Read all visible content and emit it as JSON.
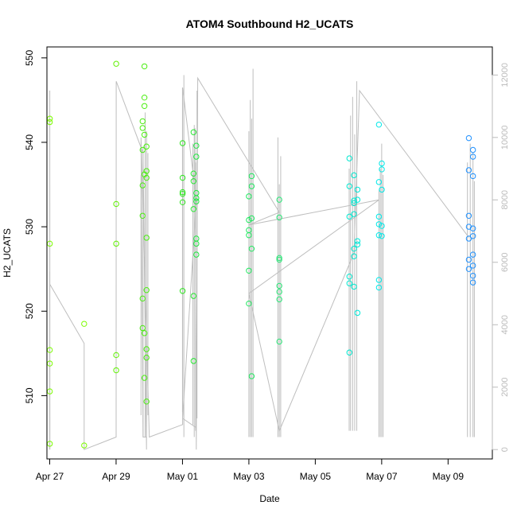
{
  "chart_data": {
    "type": "scatter",
    "title": "ATOM4 Southbound H2_UCATS",
    "xlabel": "Date",
    "ylabel": "H2_UCATS",
    "xlim": [
      "2016-04-26 22:00",
      "2016-05-10 08:00"
    ],
    "ylim": [
      502.5,
      551.3
    ],
    "y2lim": [
      -300,
      12900
    ],
    "x_tick_labels": [
      "Apr 27",
      "Apr 29",
      "May 01",
      "May 03",
      "May 05",
      "May 07",
      "May 09"
    ],
    "x_tick_values": [
      "2016-04-27",
      "2016-04-29",
      "2016-05-01",
      "2016-05-03",
      "2016-05-05",
      "2016-05-07",
      "2016-05-09"
    ],
    "y_tick_labels": [
      "510",
      "520",
      "530",
      "540",
      "550"
    ],
    "y2_tick_labels": [
      "0",
      "2000",
      "4000",
      "6000",
      "8000",
      "10000",
      "12000"
    ],
    "grid": false,
    "colors": {
      "flight_track": "#bebebe",
      "axis": "#000000",
      "right_axis": "#bbbbbb"
    },
    "points": [
      {
        "t": "2016-04-27 00:05",
        "y": 542.8,
        "color": "#7cfc00"
      },
      {
        "t": "2016-04-27 00:05",
        "y": 542.4,
        "color": "#7cfc00"
      },
      {
        "t": "2016-04-27 00:05",
        "y": 528.0,
        "color": "#7cfc00"
      },
      {
        "t": "2016-04-27 00:05",
        "y": 515.4,
        "color": "#7cfc00"
      },
      {
        "t": "2016-04-27 00:05",
        "y": 513.8,
        "color": "#7cfc00"
      },
      {
        "t": "2016-04-27 00:05",
        "y": 510.5,
        "color": "#7cfc00"
      },
      {
        "t": "2016-04-27 00:05",
        "y": 504.3,
        "color": "#7cfc00"
      },
      {
        "t": "2016-04-28 00:55",
        "y": 518.5,
        "color": "#7cfc00"
      },
      {
        "t": "2016-04-28 00:55",
        "y": 504.1,
        "color": "#7cfc00"
      },
      {
        "t": "2016-04-29 00:05",
        "y": 549.3,
        "color": "#5ff200"
      },
      {
        "t": "2016-04-29 00:05",
        "y": 532.7,
        "color": "#5ff200"
      },
      {
        "t": "2016-04-29 00:05",
        "y": 528.0,
        "color": "#5ff200"
      },
      {
        "t": "2016-04-29 00:05",
        "y": 514.8,
        "color": "#5ff200"
      },
      {
        "t": "2016-04-29 00:05",
        "y": 513.0,
        "color": "#5ff200"
      },
      {
        "t": "2016-04-29 19:10",
        "y": 542.5,
        "color": "#4aee10"
      },
      {
        "t": "2016-04-29 19:10",
        "y": 541.7,
        "color": "#4aee10"
      },
      {
        "t": "2016-04-29 19:10",
        "y": 539.1,
        "color": "#4aee10"
      },
      {
        "t": "2016-04-29 19:10",
        "y": 534.9,
        "color": "#4aee10"
      },
      {
        "t": "2016-04-29 19:10",
        "y": 531.3,
        "color": "#4aee10"
      },
      {
        "t": "2016-04-29 19:10",
        "y": 521.5,
        "color": "#4aee10"
      },
      {
        "t": "2016-04-29 19:10",
        "y": 518.0,
        "color": "#4aee10"
      },
      {
        "t": "2016-04-29 20:30",
        "y": 549.0,
        "color": "#4aee10"
      },
      {
        "t": "2016-04-29 20:30",
        "y": 545.3,
        "color": "#4aee10"
      },
      {
        "t": "2016-04-29 20:30",
        "y": 544.3,
        "color": "#4aee10"
      },
      {
        "t": "2016-04-29 20:30",
        "y": 540.9,
        "color": "#4aee10"
      },
      {
        "t": "2016-04-29 20:30",
        "y": 536.2,
        "color": "#4aee10"
      },
      {
        "t": "2016-04-29 20:30",
        "y": 517.4,
        "color": "#4aee10"
      },
      {
        "t": "2016-04-29 20:30",
        "y": 512.1,
        "color": "#4aee10"
      },
      {
        "t": "2016-04-29 22:00",
        "y": 539.5,
        "color": "#4aee10"
      },
      {
        "t": "2016-04-29 22:00",
        "y": 536.6,
        "color": "#4aee10"
      },
      {
        "t": "2016-04-29 22:00",
        "y": 535.8,
        "color": "#4aee10"
      },
      {
        "t": "2016-04-29 22:00",
        "y": 528.7,
        "color": "#4aee10"
      },
      {
        "t": "2016-04-29 22:00",
        "y": 522.5,
        "color": "#4aee10"
      },
      {
        "t": "2016-04-29 22:00",
        "y": 515.5,
        "color": "#4aee10"
      },
      {
        "t": "2016-04-29 22:00",
        "y": 514.5,
        "color": "#4aee10"
      },
      {
        "t": "2016-04-29 22:00",
        "y": 509.3,
        "color": "#4aee10"
      },
      {
        "t": "2016-05-01 00:05",
        "y": 539.9,
        "color": "#2ee820"
      },
      {
        "t": "2016-05-01 00:05",
        "y": 535.8,
        "color": "#2ee820"
      },
      {
        "t": "2016-05-01 00:05",
        "y": 534.1,
        "color": "#2ee820"
      },
      {
        "t": "2016-05-01 00:05",
        "y": 533.9,
        "color": "#2ee820"
      },
      {
        "t": "2016-05-01 00:05",
        "y": 532.9,
        "color": "#2ee820"
      },
      {
        "t": "2016-05-01 00:05",
        "y": 522.4,
        "color": "#2ee820"
      },
      {
        "t": "2016-05-01 08:00",
        "y": 541.2,
        "color": "#25e830"
      },
      {
        "t": "2016-05-01 08:00",
        "y": 536.3,
        "color": "#25e830"
      },
      {
        "t": "2016-05-01 08:00",
        "y": 535.4,
        "color": "#25e830"
      },
      {
        "t": "2016-05-01 08:00",
        "y": 532.1,
        "color": "#25e830"
      },
      {
        "t": "2016-05-01 08:00",
        "y": 521.8,
        "color": "#25e830"
      },
      {
        "t": "2016-05-01 08:00",
        "y": 514.1,
        "color": "#25e830"
      },
      {
        "t": "2016-05-01 10:00",
        "y": 539.6,
        "color": "#20e840"
      },
      {
        "t": "2016-05-01 10:00",
        "y": 538.3,
        "color": "#20e840"
      },
      {
        "t": "2016-05-01 10:00",
        "y": 534.0,
        "color": "#20e840"
      },
      {
        "t": "2016-05-01 10:00",
        "y": 533.4,
        "color": "#20e840"
      },
      {
        "t": "2016-05-01 10:00",
        "y": 533.0,
        "color": "#20e840"
      },
      {
        "t": "2016-05-01 10:00",
        "y": 528.6,
        "color": "#20e840"
      },
      {
        "t": "2016-05-01 10:00",
        "y": 528.0,
        "color": "#20e840"
      },
      {
        "t": "2016-05-01 10:00",
        "y": 526.7,
        "color": "#20e840"
      },
      {
        "t": "2016-05-03 00:00",
        "y": 533.6,
        "color": "#20e860"
      },
      {
        "t": "2016-05-03 00:00",
        "y": 530.8,
        "color": "#20e860"
      },
      {
        "t": "2016-05-03 00:00",
        "y": 529.6,
        "color": "#20e860"
      },
      {
        "t": "2016-05-03 00:00",
        "y": 529.0,
        "color": "#20e860"
      },
      {
        "t": "2016-05-03 00:00",
        "y": 524.8,
        "color": "#20e860"
      },
      {
        "t": "2016-05-03 00:00",
        "y": 520.9,
        "color": "#20e860"
      },
      {
        "t": "2016-05-03 02:00",
        "y": 536.0,
        "color": "#20e860"
      },
      {
        "t": "2016-05-03 02:00",
        "y": 534.8,
        "color": "#20e860"
      },
      {
        "t": "2016-05-03 02:00",
        "y": 531.0,
        "color": "#20e860"
      },
      {
        "t": "2016-05-03 02:00",
        "y": 527.4,
        "color": "#20e860"
      },
      {
        "t": "2016-05-03 02:00",
        "y": 512.3,
        "color": "#20e860"
      },
      {
        "t": "2016-05-03 22:00",
        "y": 533.2,
        "color": "#2ee87a"
      },
      {
        "t": "2016-05-03 22:00",
        "y": 531.1,
        "color": "#2ee87a"
      },
      {
        "t": "2016-05-03 22:00",
        "y": 526.3,
        "color": "#2ee87a"
      },
      {
        "t": "2016-05-03 22:00",
        "y": 526.1,
        "color": "#2ee87a"
      },
      {
        "t": "2016-05-03 22:00",
        "y": 523.0,
        "color": "#2ee87a"
      },
      {
        "t": "2016-05-03 22:00",
        "y": 522.3,
        "color": "#2ee87a"
      },
      {
        "t": "2016-05-03 22:00",
        "y": 521.4,
        "color": "#2ee87a"
      },
      {
        "t": "2016-05-03 22:00",
        "y": 516.4,
        "color": "#2ee87a"
      },
      {
        "t": "2016-05-06 00:40",
        "y": 538.1,
        "color": "#00e8d0"
      },
      {
        "t": "2016-05-06 00:40",
        "y": 534.8,
        "color": "#00e8d0"
      },
      {
        "t": "2016-05-06 00:40",
        "y": 531.2,
        "color": "#00e8d0"
      },
      {
        "t": "2016-05-06 00:40",
        "y": 524.1,
        "color": "#00e8d0"
      },
      {
        "t": "2016-05-06 00:40",
        "y": 523.3,
        "color": "#00e8d0"
      },
      {
        "t": "2016-05-06 00:40",
        "y": 515.1,
        "color": "#00e8d0"
      },
      {
        "t": "2016-05-06 04:00",
        "y": 536.1,
        "color": "#00e8d0"
      },
      {
        "t": "2016-05-06 04:00",
        "y": 533.1,
        "color": "#00e8d0"
      },
      {
        "t": "2016-05-06 04:00",
        "y": 532.8,
        "color": "#00e8d0"
      },
      {
        "t": "2016-05-06 04:00",
        "y": 531.5,
        "color": "#00e8d0"
      },
      {
        "t": "2016-05-06 04:00",
        "y": 527.4,
        "color": "#00e8d0"
      },
      {
        "t": "2016-05-06 04:00",
        "y": 526.5,
        "color": "#00e8d0"
      },
      {
        "t": "2016-05-06 04:00",
        "y": 522.9,
        "color": "#00e8d0"
      },
      {
        "t": "2016-05-06 06:30",
        "y": 534.4,
        "color": "#00e8d8"
      },
      {
        "t": "2016-05-06 06:30",
        "y": 533.2,
        "color": "#00e8d8"
      },
      {
        "t": "2016-05-06 06:30",
        "y": 528.3,
        "color": "#00e8d8"
      },
      {
        "t": "2016-05-06 06:30",
        "y": 527.9,
        "color": "#00e8d8"
      },
      {
        "t": "2016-05-06 06:30",
        "y": 519.8,
        "color": "#00e8d8"
      },
      {
        "t": "2016-05-06 22:00",
        "y": 542.1,
        "color": "#00e8e8"
      },
      {
        "t": "2016-05-06 22:00",
        "y": 535.3,
        "color": "#00e8e8"
      },
      {
        "t": "2016-05-06 22:00",
        "y": 531.2,
        "color": "#00e8e8"
      },
      {
        "t": "2016-05-06 22:00",
        "y": 530.3,
        "color": "#00e8e8"
      },
      {
        "t": "2016-05-06 22:00",
        "y": 529.0,
        "color": "#00e8e8"
      },
      {
        "t": "2016-05-06 22:00",
        "y": 523.7,
        "color": "#00e8e8"
      },
      {
        "t": "2016-05-06 22:00",
        "y": 522.8,
        "color": "#00e8e8"
      },
      {
        "t": "2016-05-07 00:05",
        "y": 537.5,
        "color": "#00e8e8"
      },
      {
        "t": "2016-05-07 00:05",
        "y": 536.8,
        "color": "#00e8e8"
      },
      {
        "t": "2016-05-07 00:05",
        "y": 534.4,
        "color": "#00e8e8"
      },
      {
        "t": "2016-05-07 00:05",
        "y": 530.1,
        "color": "#00e8e8"
      },
      {
        "t": "2016-05-07 00:05",
        "y": 528.9,
        "color": "#00e8e8"
      },
      {
        "t": "2016-05-09 15:00",
        "y": 540.5,
        "color": "#1e90ff"
      },
      {
        "t": "2016-05-09 15:00",
        "y": 536.7,
        "color": "#1e90ff"
      },
      {
        "t": "2016-05-09 15:00",
        "y": 531.3,
        "color": "#1e90ff"
      },
      {
        "t": "2016-05-09 15:00",
        "y": 530.0,
        "color": "#1e90ff"
      },
      {
        "t": "2016-05-09 15:00",
        "y": 528.6,
        "color": "#1e90ff"
      },
      {
        "t": "2016-05-09 15:00",
        "y": 526.1,
        "color": "#1e90ff"
      },
      {
        "t": "2016-05-09 15:00",
        "y": 525.0,
        "color": "#1e90ff"
      },
      {
        "t": "2016-05-09 18:00",
        "y": 539.1,
        "color": "#1e90ff"
      },
      {
        "t": "2016-05-09 18:00",
        "y": 538.3,
        "color": "#1e90ff"
      },
      {
        "t": "2016-05-09 18:00",
        "y": 536.0,
        "color": "#1e90ff"
      },
      {
        "t": "2016-05-09 18:00",
        "y": 529.8,
        "color": "#1e90ff"
      },
      {
        "t": "2016-05-09 18:00",
        "y": 528.9,
        "color": "#1e90ff"
      },
      {
        "t": "2016-05-09 18:00",
        "y": 526.7,
        "color": "#1e90ff"
      },
      {
        "t": "2016-05-09 18:00",
        "y": 525.4,
        "color": "#1e90ff"
      },
      {
        "t": "2016-05-09 18:00",
        "y": 524.2,
        "color": "#1e90ff"
      },
      {
        "t": "2016-05-09 18:00",
        "y": 523.4,
        "color": "#1e90ff"
      }
    ],
    "flight_track": [
      [
        "2016-04-27 00:00",
        0
      ],
      [
        "2016-04-27 00:00",
        5700
      ],
      [
        "2016-04-27 00:03",
        0
      ],
      [
        "2016-04-27 00:05",
        11500
      ],
      [
        "2016-04-27 00:08",
        0
      ],
      [
        "2016-04-27 00:05",
        5300
      ],
      [
        "2016-04-28 00:55",
        3400
      ],
      [
        "2016-04-28 00:55",
        0
      ],
      [
        "2016-04-29 00:00",
        400
      ],
      [
        "2016-04-29 00:05",
        11800
      ],
      [
        "2016-04-29 19:30",
        9500
      ],
      [
        "2016-04-29 22:00",
        0
      ],
      [
        "2016-04-29 22:00",
        400
      ],
      [
        "2016-04-29 19:30",
        400
      ],
      [
        "2016-04-29 18:00",
        10000
      ],
      [
        "2016-04-30 00:00",
        400
      ],
      [
        "2016-05-01 00:05",
        800
      ],
      [
        "2016-05-01 00:05",
        11600
      ],
      [
        "2016-05-01 10:00",
        8000
      ],
      [
        "2016-05-01 00:05",
        1000
      ],
      [
        "2016-05-01 10:00",
        700
      ],
      [
        "2016-05-01 09:00",
        10300
      ],
      [
        "2016-05-01 10:00",
        0
      ],
      [
        "2016-05-01 11:00",
        11900
      ],
      [
        "2016-05-03 22:00",
        7600
      ],
      [
        "2016-05-03 00:00",
        7200
      ],
      [
        "2016-05-06 22:00",
        8000
      ],
      [
        "2016-05-03 00:00",
        5000
      ],
      [
        "2016-05-03 22:00",
        600
      ],
      [
        "2016-05-06 04:00",
        6300
      ],
      [
        "2016-05-06 08:00",
        11500
      ],
      [
        "2016-05-09 15:00",
        6800
      ]
    ],
    "flight_spikes": [
      {
        "t": "2016-04-29 18:00",
        "top": 8800,
        "bottom": 1100
      },
      {
        "t": "2016-04-29 19:30",
        "top": 9700,
        "bottom": 400
      },
      {
        "t": "2016-04-29 21:00",
        "top": 10800,
        "bottom": 400
      },
      {
        "t": "2016-04-29 22:00",
        "top": 10200,
        "bottom": 400
      },
      {
        "t": "2016-04-29 23:00",
        "top": 9500,
        "bottom": 1100
      },
      {
        "t": "2016-05-01 00:00",
        "top": 11600,
        "bottom": 1200
      },
      {
        "t": "2016-05-01 01:00",
        "top": 12000,
        "bottom": 400
      },
      {
        "t": "2016-05-01 07:30",
        "top": 9800,
        "bottom": 800
      },
      {
        "t": "2016-05-01 08:30",
        "top": 10400,
        "bottom": 400
      },
      {
        "t": "2016-05-01 09:30",
        "top": 9200,
        "bottom": 600
      },
      {
        "t": "2016-05-01 10:30",
        "top": 11500,
        "bottom": 1000
      },
      {
        "t": "2016-05-03 00:00",
        "top": 10200,
        "bottom": 400
      },
      {
        "t": "2016-05-03 01:00",
        "top": 11200,
        "bottom": 400
      },
      {
        "t": "2016-05-03 02:00",
        "top": 10600,
        "bottom": 400
      },
      {
        "t": "2016-05-03 03:00",
        "top": 12200,
        "bottom": 400
      },
      {
        "t": "2016-05-03 21:00",
        "top": 10000,
        "bottom": 400
      },
      {
        "t": "2016-05-03 22:00",
        "top": 8500,
        "bottom": 400
      },
      {
        "t": "2016-05-03 23:00",
        "top": 9400,
        "bottom": 400
      },
      {
        "t": "2016-05-06 00:30",
        "top": 9000,
        "bottom": 600
      },
      {
        "t": "2016-05-06 01:30",
        "top": 10700,
        "bottom": 600
      },
      {
        "t": "2016-05-06 03:00",
        "top": 11300,
        "bottom": 600
      },
      {
        "t": "2016-05-06 04:30",
        "top": 10100,
        "bottom": 600
      },
      {
        "t": "2016-05-06 06:00",
        "top": 11800,
        "bottom": 600
      },
      {
        "t": "2016-05-06 22:00",
        "top": 8300,
        "bottom": 400
      },
      {
        "t": "2016-05-06 23:00",
        "top": 9000,
        "bottom": 400
      },
      {
        "t": "2016-05-07 00:00",
        "top": 9800,
        "bottom": 400
      },
      {
        "t": "2016-05-07 01:00",
        "top": 8800,
        "bottom": 400
      },
      {
        "t": "2016-05-09 14:00",
        "top": 9200,
        "bottom": 400
      },
      {
        "t": "2016-05-09 16:00",
        "top": 9800,
        "bottom": 400
      },
      {
        "t": "2016-05-09 18:00",
        "top": 9500,
        "bottom": 400
      },
      {
        "t": "2016-05-09 19:00",
        "top": 8600,
        "bottom": 400
      }
    ]
  }
}
